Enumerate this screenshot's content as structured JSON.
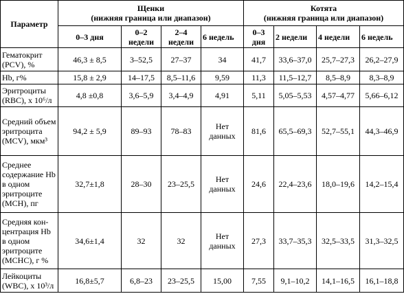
{
  "header": {
    "param": "Параметр",
    "puppies_title": "Щенки",
    "puppies_sub": "(нижняя граница или диапазон)",
    "kittens_title": "Котята",
    "kittens_sub": "(нижняя граница или диапазон)",
    "puppy_cols": [
      "0–3 дня",
      "0–2 недели",
      "2–4 недели",
      "6 недель"
    ],
    "kitten_cols": [
      "0–3 дня",
      "2 недели",
      "4 недели",
      "6 недель"
    ]
  },
  "rows": [
    {
      "param": "Гематокрит (PCV), %",
      "puppies": [
        "46,3 ± 8,5",
        "3–52,5",
        "27–37",
        "34"
      ],
      "kittens": [
        "41,7",
        "33,6–37,0",
        "25,7–27,3",
        "26,2–27,9"
      ]
    },
    {
      "param": "Hb, г%",
      "puppies": [
        "15,8 ± 2,9",
        "14–17,5",
        "8,5–11,6",
        "9,59"
      ],
      "kittens": [
        "11,3",
        "11,5–12,7",
        "8,5–8,9",
        "8,3–8,9"
      ]
    },
    {
      "param": "Эритроциты (RBC), х 10⁶/л",
      "puppies": [
        "4,8 ±0,8",
        "3,6–5,9",
        "3,4–4,9",
        "4,91"
      ],
      "kittens": [
        "5,11",
        "5,05–5,53",
        "4,57–4,77",
        "5,66–6,12"
      ]
    },
    {
      "param": "Средний объем эритроцита (MCV), мкм³",
      "puppies": [
        "94,2 ± 5,9",
        "89–93",
        "78–83",
        "Нет данных"
      ],
      "kittens": [
        "81,6",
        "65,5–69,3",
        "52,7–55,1",
        "44,3–46,9"
      ]
    },
    {
      "param": "Среднее содержание Hb в одном эритроците (MCH), пг",
      "puppies": [
        "32,7±1,8",
        "28–30",
        "23–25,5",
        "Нет данных"
      ],
      "kittens": [
        "24,6",
        "22,4–23,6",
        "18,0–19,6",
        "14,2–15,4"
      ]
    },
    {
      "param": "Средняя кон-центрация Hb в одном эритроците (MCHC), г %",
      "puppies": [
        "34,6±1,4",
        "32",
        "32",
        "Нет данных"
      ],
      "kittens": [
        "27,3",
        "33,7–35,3",
        "32,5–33,5",
        "31,3–32,5"
      ]
    },
    {
      "param": "Лейкоциты (WBC), х 10³/л",
      "puppies": [
        "16,8±5,7",
        "6,8–23",
        "23–25,5",
        "15,00"
      ],
      "kittens": [
        "7,55",
        "9,1–10,2",
        "14,1–16,5",
        "16,1–18,8"
      ]
    }
  ]
}
